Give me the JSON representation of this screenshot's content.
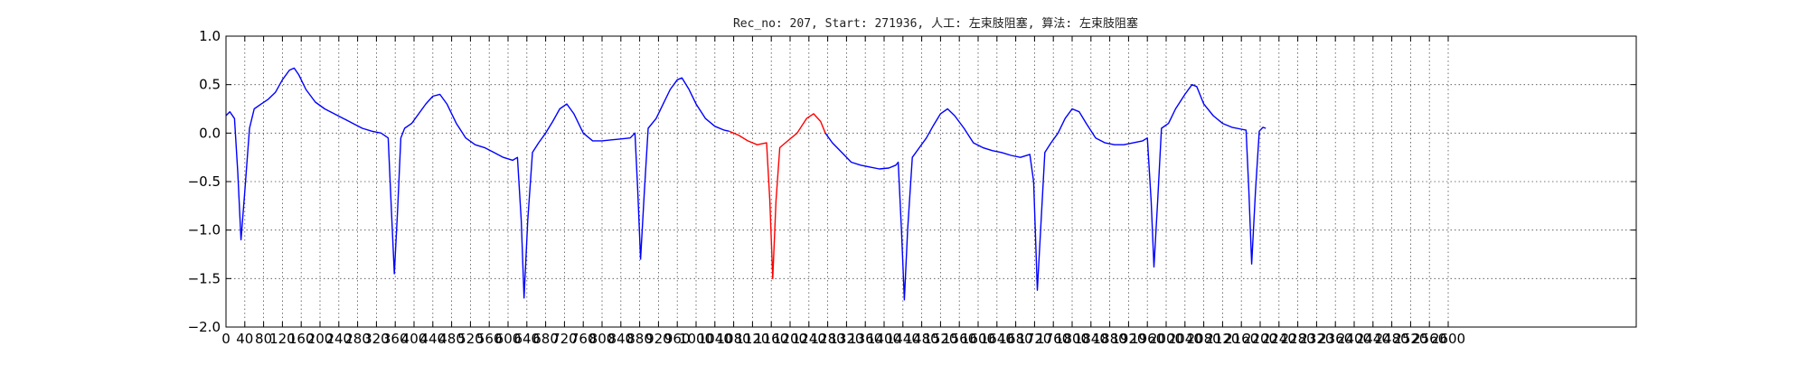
{
  "chart_data": {
    "type": "line",
    "title": "Rec_no: 207, Start: 271936, 人工: 左束肢阻塞, 算法: 左束肢阻塞",
    "xlabel": "",
    "ylabel": "",
    "xlim": [
      0,
      3000
    ],
    "ylim": [
      -2.0,
      1.0
    ],
    "grid": true,
    "x_ticks": [
      0,
      40,
      80,
      120,
      160,
      200,
      240,
      280,
      320,
      360,
      400,
      440,
      480,
      520,
      560,
      600,
      640,
      680,
      720,
      760,
      800,
      840,
      880,
      920,
      960,
      1000,
      1040,
      1080,
      1120,
      1160,
      1200,
      1240,
      1280,
      1320,
      1360,
      1400,
      1440,
      1480,
      1520,
      1560,
      1600,
      1640,
      1680,
      1720,
      1760,
      1800,
      1840,
      1880,
      1920,
      1960,
      2000,
      2040,
      2080,
      2120,
      2160,
      2200,
      2240,
      2280,
      2320,
      2360,
      2400,
      2440,
      2480,
      2520,
      2560,
      2600
    ],
    "y_ticks": [
      1.0,
      0.5,
      0.0,
      -0.5,
      -1.0,
      -1.5,
      -2.0
    ],
    "y_tick_labels": [
      "1.0",
      "0.5",
      "0.0",
      "−0.5",
      "−1.0",
      "−1.5",
      "−2.0"
    ],
    "colors": {
      "ecg": "#0000ff",
      "highlight": "#ff0000",
      "grid": "#000000"
    },
    "series": [
      {
        "color": "#0000ff",
        "points": [
          [
            0,
            0.18
          ],
          [
            8,
            0.22
          ],
          [
            18,
            0.15
          ],
          [
            25,
            -0.4
          ],
          [
            32,
            -1.1
          ],
          [
            40,
            -0.6
          ],
          [
            50,
            0.05
          ],
          [
            60,
            0.25
          ],
          [
            75,
            0.3
          ],
          [
            90,
            0.35
          ],
          [
            105,
            0.42
          ],
          [
            120,
            0.55
          ],
          [
            135,
            0.65
          ],
          [
            145,
            0.67
          ],
          [
            155,
            0.6
          ],
          [
            170,
            0.45
          ],
          [
            190,
            0.32
          ],
          [
            210,
            0.25
          ],
          [
            230,
            0.2
          ],
          [
            250,
            0.15
          ],
          [
            270,
            0.1
          ],
          [
            290,
            0.05
          ],
          [
            310,
            0.02
          ],
          [
            330,
            0.0
          ],
          [
            345,
            -0.05
          ],
          [
            352,
            -0.8
          ],
          [
            358,
            -1.45
          ],
          [
            365,
            -0.8
          ],
          [
            372,
            -0.05
          ],
          [
            380,
            0.05
          ],
          [
            395,
            0.1
          ],
          [
            410,
            0.2
          ],
          [
            425,
            0.3
          ],
          [
            440,
            0.38
          ],
          [
            455,
            0.4
          ],
          [
            470,
            0.3
          ],
          [
            490,
            0.1
          ],
          [
            510,
            -0.05
          ],
          [
            530,
            -0.12
          ],
          [
            550,
            -0.15
          ],
          [
            570,
            -0.2
          ],
          [
            590,
            -0.25
          ],
          [
            610,
            -0.28
          ],
          [
            620,
            -0.25
          ],
          [
            628,
            -0.9
          ],
          [
            634,
            -1.7
          ],
          [
            642,
            -0.9
          ],
          [
            652,
            -0.2
          ],
          [
            665,
            -0.1
          ],
          [
            680,
            0.0
          ],
          [
            695,
            0.12
          ],
          [
            710,
            0.25
          ],
          [
            725,
            0.3
          ],
          [
            740,
            0.2
          ],
          [
            760,
            0.0
          ],
          [
            780,
            -0.08
          ],
          [
            800,
            -0.08
          ],
          [
            820,
            -0.07
          ],
          [
            840,
            -0.06
          ],
          [
            860,
            -0.05
          ],
          [
            870,
            0.0
          ],
          [
            876,
            -0.6
          ],
          [
            882,
            -1.3
          ],
          [
            890,
            -0.6
          ],
          [
            898,
            0.05
          ],
          [
            915,
            0.15
          ],
          [
            930,
            0.3
          ],
          [
            945,
            0.45
          ],
          [
            960,
            0.55
          ],
          [
            970,
            0.57
          ],
          [
            985,
            0.45
          ],
          [
            1000,
            0.3
          ],
          [
            1020,
            0.15
          ],
          [
            1040,
            0.07
          ],
          [
            1060,
            0.03
          ],
          [
            1070,
            0.02
          ]
        ]
      },
      {
        "color": "#ff0000",
        "points": [
          [
            1070,
            0.02
          ],
          [
            1090,
            -0.02
          ],
          [
            1110,
            -0.08
          ],
          [
            1130,
            -0.12
          ],
          [
            1150,
            -0.1
          ],
          [
            1157,
            -0.7
          ],
          [
            1163,
            -1.5
          ],
          [
            1170,
            -0.7
          ],
          [
            1178,
            -0.15
          ],
          [
            1195,
            -0.08
          ],
          [
            1215,
            0.0
          ],
          [
            1235,
            0.15
          ],
          [
            1250,
            0.2
          ],
          [
            1265,
            0.12
          ],
          [
            1275,
            0.0
          ]
        ]
      },
      {
        "color": "#0000ff",
        "points": [
          [
            1275,
            0.0
          ],
          [
            1290,
            -0.1
          ],
          [
            1310,
            -0.2
          ],
          [
            1330,
            -0.3
          ],
          [
            1350,
            -0.33
          ],
          [
            1370,
            -0.35
          ],
          [
            1390,
            -0.37
          ],
          [
            1410,
            -0.36
          ],
          [
            1425,
            -0.33
          ],
          [
            1430,
            -0.3
          ],
          [
            1437,
            -1.0
          ],
          [
            1443,
            -1.72
          ],
          [
            1450,
            -1.0
          ],
          [
            1460,
            -0.25
          ],
          [
            1475,
            -0.15
          ],
          [
            1490,
            -0.05
          ],
          [
            1505,
            0.08
          ],
          [
            1520,
            0.2
          ],
          [
            1535,
            0.25
          ],
          [
            1550,
            0.18
          ],
          [
            1570,
            0.05
          ],
          [
            1590,
            -0.1
          ],
          [
            1610,
            -0.15
          ],
          [
            1630,
            -0.18
          ],
          [
            1650,
            -0.2
          ],
          [
            1670,
            -0.23
          ],
          [
            1690,
            -0.25
          ],
          [
            1710,
            -0.22
          ],
          [
            1718,
            -0.5
          ],
          [
            1726,
            -1.62
          ],
          [
            1734,
            -0.9
          ],
          [
            1742,
            -0.2
          ],
          [
            1755,
            -0.1
          ],
          [
            1770,
            0.0
          ],
          [
            1785,
            0.15
          ],
          [
            1800,
            0.25
          ],
          [
            1815,
            0.22
          ],
          [
            1830,
            0.1
          ],
          [
            1850,
            -0.05
          ],
          [
            1870,
            -0.1
          ],
          [
            1890,
            -0.12
          ],
          [
            1910,
            -0.12
          ],
          [
            1930,
            -0.1
          ],
          [
            1950,
            -0.08
          ],
          [
            1960,
            -0.05
          ],
          [
            1968,
            -0.7
          ],
          [
            1974,
            -1.38
          ],
          [
            1982,
            -0.7
          ],
          [
            1990,
            0.05
          ],
          [
            2005,
            0.1
          ],
          [
            2020,
            0.25
          ],
          [
            2040,
            0.4
          ],
          [
            2055,
            0.5
          ],
          [
            2065,
            0.48
          ],
          [
            2080,
            0.3
          ],
          [
            2100,
            0.18
          ],
          [
            2120,
            0.1
          ],
          [
            2140,
            0.06
          ],
          [
            2160,
            0.04
          ],
          [
            2170,
            0.03
          ],
          [
            2176,
            -0.6
          ],
          [
            2182,
            -1.35
          ],
          [
            2190,
            -0.6
          ],
          [
            2198,
            0.02
          ],
          [
            2206,
            0.06
          ],
          [
            2212,
            0.05
          ]
        ]
      }
    ]
  }
}
